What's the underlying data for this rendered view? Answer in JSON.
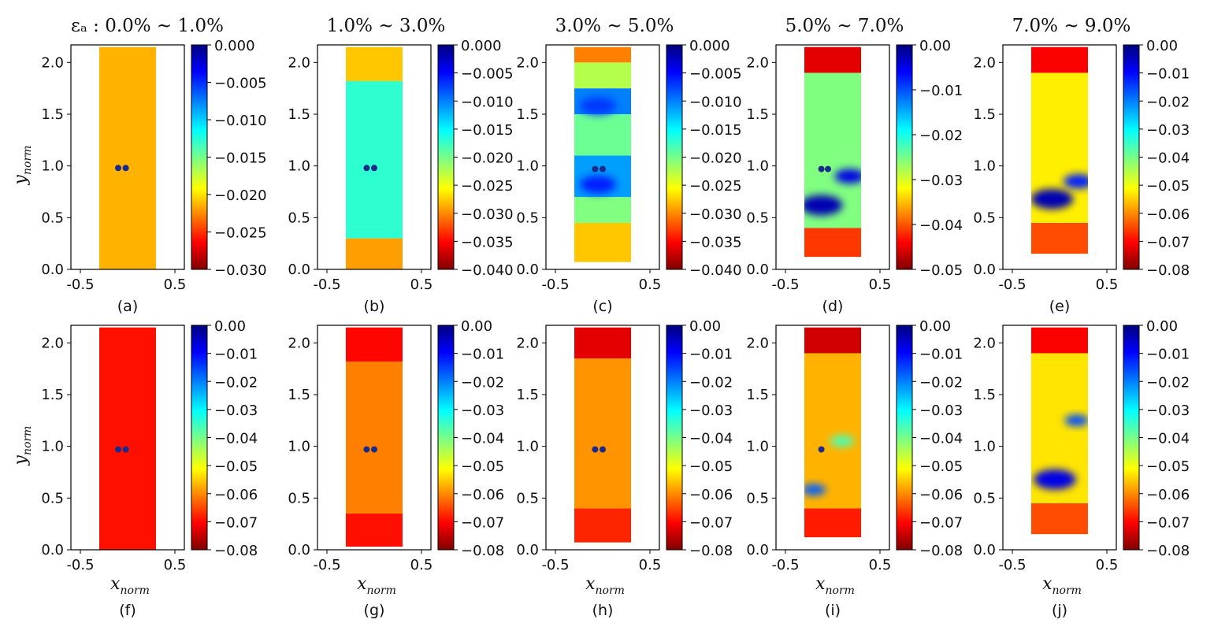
{
  "chart_data": [
    {
      "type": "heatmap",
      "panel": "(a)",
      "title": "εₐ : 0.0% ~ 1.0%",
      "xlabel": "",
      "ylabel": "y_norm",
      "xticks": [
        "-0.5",
        "0.5"
      ],
      "yticks": [
        "0.0",
        "0.5",
        "1.0",
        "1.5",
        "2.0"
      ],
      "xlim": [
        -0.6,
        0.6
      ],
      "ylim": [
        0,
        2.17
      ],
      "colorbar_ticks": [
        "0.000",
        "-0.005",
        "-0.010",
        "-0.015",
        "-0.020",
        "-0.025",
        "-0.030"
      ],
      "colorbar_range": [
        -0.03,
        0.0
      ],
      "specimen": {
        "x": [
          -0.3,
          0.3
        ],
        "y": [
          0,
          2.15
        ]
      },
      "bands": [
        {
          "y": [
            0,
            2.15
          ],
          "v": 0.3
        }
      ],
      "hotspots": [],
      "marks": [
        {
          "x": -0.1,
          "y": 0.98
        },
        {
          "x": -0.02,
          "y": 0.98
        }
      ]
    },
    {
      "type": "heatmap",
      "panel": "(b)",
      "title": "1.0% ~ 3.0%",
      "xlabel": "",
      "ylabel": "",
      "xticks": [
        "-0.5",
        "0.5"
      ],
      "yticks": [
        "0.0",
        "0.5",
        "1.0",
        "1.5",
        "2.0"
      ],
      "xlim": [
        -0.6,
        0.6
      ],
      "ylim": [
        0,
        2.17
      ],
      "colorbar_ticks": [
        "0.000",
        "-0.005",
        "-0.010",
        "-0.015",
        "-0.020",
        "-0.025",
        "-0.030",
        "-0.035",
        "-0.040"
      ],
      "colorbar_range": [
        -0.04,
        0.0
      ],
      "specimen": {
        "x": [
          -0.3,
          0.3
        ],
        "y": [
          0,
          2.15
        ]
      },
      "bands": [
        {
          "y": [
            0,
            0.3
          ],
          "v": 0.28
        },
        {
          "y": [
            0.3,
            1.82
          ],
          "v": 0.58
        },
        {
          "y": [
            1.82,
            2.15
          ],
          "v": 0.32
        }
      ],
      "hotspots": [],
      "marks": [
        {
          "x": -0.08,
          "y": 0.98
        },
        {
          "x": 0.0,
          "y": 0.98
        }
      ]
    },
    {
      "type": "heatmap",
      "panel": "(c)",
      "title": "3.0% ~ 5.0%",
      "xlabel": "",
      "ylabel": "",
      "xticks": [
        "-0.5",
        "0.5"
      ],
      "yticks": [
        "0.0",
        "0.5",
        "1.0",
        "1.5",
        "2.0"
      ],
      "xlim": [
        -0.6,
        0.6
      ],
      "ylim": [
        0,
        2.17
      ],
      "colorbar_ticks": [
        "0.000",
        "-0.005",
        "-0.010",
        "-0.015",
        "-0.020",
        "-0.025",
        "-0.030",
        "-0.035",
        "-0.040"
      ],
      "colorbar_range": [
        -0.04,
        0.0
      ],
      "specimen": {
        "x": [
          -0.3,
          0.3
        ],
        "y": [
          0.07,
          2.15
        ]
      },
      "bands": [
        {
          "y": [
            0.07,
            0.45
          ],
          "v": 0.32
        },
        {
          "y": [
            0.45,
            0.7
          ],
          "v": 0.5
        },
        {
          "y": [
            0.7,
            1.1
          ],
          "v": 0.72
        },
        {
          "y": [
            1.1,
            1.5
          ],
          "v": 0.52
        },
        {
          "y": [
            1.5,
            1.75
          ],
          "v": 0.75
        },
        {
          "y": [
            1.75,
            2.0
          ],
          "v": 0.45
        },
        {
          "y": [
            2.0,
            2.15
          ],
          "v": 0.25
        }
      ],
      "hotspots": [
        {
          "x": -0.05,
          "y": 0.82,
          "r": 0.12,
          "v": 0.85
        },
        {
          "x": -0.05,
          "y": 1.58,
          "r": 0.12,
          "v": 0.82
        }
      ],
      "marks": [
        {
          "x": -0.08,
          "y": 0.97
        },
        {
          "x": 0.0,
          "y": 0.97
        }
      ]
    },
    {
      "type": "heatmap",
      "panel": "(d)",
      "title": "5.0% ~ 7.0%",
      "xlabel": "",
      "ylabel": "",
      "xticks": [
        "-0.5",
        "0.5"
      ],
      "yticks": [
        "0.0",
        "0.5",
        "1.0",
        "1.5",
        "2.0"
      ],
      "xlim": [
        -0.6,
        0.6
      ],
      "ylim": [
        0,
        2.17
      ],
      "colorbar_ticks": [
        "0.00",
        "-0.01",
        "-0.02",
        "-0.03",
        "-0.04",
        "-0.05"
      ],
      "colorbar_range": [
        -0.05,
        0.0
      ],
      "specimen": {
        "x": [
          -0.3,
          0.3
        ],
        "y": [
          0.12,
          2.15
        ]
      },
      "bands": [
        {
          "y": [
            0.12,
            0.4
          ],
          "v": 0.18
        },
        {
          "y": [
            0.4,
            1.9
          ],
          "v": 0.5
        },
        {
          "y": [
            1.9,
            2.15
          ],
          "v": 0.1
        }
      ],
      "hotspots": [
        {
          "x": -0.12,
          "y": 0.62,
          "r": 0.14,
          "v": 0.95
        },
        {
          "x": 0.18,
          "y": 0.9,
          "r": 0.1,
          "v": 0.9
        }
      ],
      "marks": [
        {
          "x": -0.12,
          "y": 0.97
        },
        {
          "x": -0.05,
          "y": 0.97
        }
      ]
    },
    {
      "type": "heatmap",
      "panel": "(e)",
      "title": "7.0% ~ 9.0%",
      "xlabel": "",
      "ylabel": "",
      "xticks": [
        "-0.5",
        "0.5"
      ],
      "yticks": [
        "0.0",
        "0.5",
        "1.0",
        "1.5",
        "2.0"
      ],
      "xlim": [
        -0.6,
        0.6
      ],
      "ylim": [
        0,
        2.17
      ],
      "colorbar_ticks": [
        "0.00",
        "-0.01",
        "-0.02",
        "-0.03",
        "-0.04",
        "-0.05",
        "-0.06",
        "-0.07",
        "-0.08"
      ],
      "colorbar_range": [
        -0.08,
        0.0
      ],
      "specimen": {
        "x": [
          -0.3,
          0.3
        ],
        "y": [
          0.15,
          2.15
        ]
      },
      "bands": [
        {
          "y": [
            0.15,
            0.45
          ],
          "v": 0.2
        },
        {
          "y": [
            0.45,
            1.9
          ],
          "v": 0.36
        },
        {
          "y": [
            1.9,
            2.15
          ],
          "v": 0.12
        }
      ],
      "hotspots": [
        {
          "x": -0.08,
          "y": 0.68,
          "r": 0.14,
          "v": 0.95
        },
        {
          "x": 0.2,
          "y": 0.85,
          "r": 0.1,
          "v": 0.85
        }
      ],
      "marks": []
    },
    {
      "type": "heatmap",
      "panel": "(f)",
      "title": "",
      "xlabel": "x_norm",
      "ylabel": "y_norm",
      "xticks": [
        "-0.5",
        "0.5"
      ],
      "yticks": [
        "0.0",
        "0.5",
        "1.0",
        "1.5",
        "2.0"
      ],
      "xlim": [
        -0.6,
        0.6
      ],
      "ylim": [
        0,
        2.17
      ],
      "colorbar_ticks": [
        "0.00",
        "-0.01",
        "-0.02",
        "-0.03",
        "-0.04",
        "-0.05",
        "-0.06",
        "-0.07",
        "-0.08"
      ],
      "colorbar_range": [
        -0.08,
        0.0
      ],
      "specimen": {
        "x": [
          -0.3,
          0.3
        ],
        "y": [
          0,
          2.15
        ]
      },
      "bands": [
        {
          "y": [
            0,
            2.15
          ],
          "v": 0.14
        }
      ],
      "hotspots": [],
      "marks": [
        {
          "x": -0.1,
          "y": 0.97
        },
        {
          "x": -0.02,
          "y": 0.97
        }
      ]
    },
    {
      "type": "heatmap",
      "panel": "(g)",
      "title": "",
      "xlabel": "x_norm",
      "ylabel": "",
      "xticks": [
        "-0.5",
        "0.5"
      ],
      "yticks": [
        "0.0",
        "0.5",
        "1.0",
        "1.5",
        "2.0"
      ],
      "xlim": [
        -0.6,
        0.6
      ],
      "ylim": [
        0,
        2.17
      ],
      "colorbar_ticks": [
        "0.00",
        "-0.01",
        "-0.02",
        "-0.03",
        "-0.04",
        "-0.05",
        "-0.06",
        "-0.07",
        "-0.08"
      ],
      "colorbar_range": [
        -0.08,
        0.0
      ],
      "specimen": {
        "x": [
          -0.3,
          0.3
        ],
        "y": [
          0.03,
          2.15
        ]
      },
      "bands": [
        {
          "y": [
            0.03,
            0.35
          ],
          "v": 0.14
        },
        {
          "y": [
            0.35,
            1.82
          ],
          "v": 0.25
        },
        {
          "y": [
            1.82,
            2.15
          ],
          "v": 0.13
        }
      ],
      "hotspots": [],
      "marks": [
        {
          "x": -0.08,
          "y": 0.97
        },
        {
          "x": 0.0,
          "y": 0.97
        }
      ]
    },
    {
      "type": "heatmap",
      "panel": "(h)",
      "title": "",
      "xlabel": "x_norm",
      "ylabel": "",
      "xticks": [
        "-0.5",
        "0.5"
      ],
      "yticks": [
        "0.0",
        "0.5",
        "1.0",
        "1.5",
        "2.0"
      ],
      "xlim": [
        -0.6,
        0.6
      ],
      "ylim": [
        0,
        2.17
      ],
      "colorbar_ticks": [
        "0.00",
        "-0.01",
        "-0.02",
        "-0.03",
        "-0.04",
        "-0.05",
        "-0.06",
        "-0.07",
        "-0.08"
      ],
      "colorbar_range": [
        -0.08,
        0.0
      ],
      "specimen": {
        "x": [
          -0.3,
          0.3
        ],
        "y": [
          0.07,
          2.15
        ]
      },
      "bands": [
        {
          "y": [
            0.07,
            0.4
          ],
          "v": 0.16
        },
        {
          "y": [
            0.4,
            1.85
          ],
          "v": 0.27
        },
        {
          "y": [
            1.85,
            2.15
          ],
          "v": 0.1
        }
      ],
      "hotspots": [],
      "marks": [
        {
          "x": -0.08,
          "y": 0.97
        },
        {
          "x": 0.0,
          "y": 0.97
        }
      ]
    },
    {
      "type": "heatmap",
      "panel": "(i)",
      "title": "",
      "xlabel": "x_norm",
      "ylabel": "",
      "xticks": [
        "-0.5",
        "0.5"
      ],
      "yticks": [
        "0.0",
        "0.5",
        "1.0",
        "1.5",
        "2.0"
      ],
      "xlim": [
        -0.6,
        0.6
      ],
      "ylim": [
        0,
        2.17
      ],
      "colorbar_ticks": [
        "0.00",
        "-0.01",
        "-0.02",
        "-0.03",
        "-0.04",
        "-0.05",
        "-0.06",
        "-0.07",
        "-0.08"
      ],
      "colorbar_range": [
        -0.08,
        0.0
      ],
      "specimen": {
        "x": [
          -0.3,
          0.3
        ],
        "y": [
          0.12,
          2.15
        ]
      },
      "bands": [
        {
          "y": [
            0.12,
            0.4
          ],
          "v": 0.15
        },
        {
          "y": [
            0.4,
            1.9
          ],
          "v": 0.3
        },
        {
          "y": [
            1.9,
            2.15
          ],
          "v": 0.08
        }
      ],
      "hotspots": [
        {
          "x": -0.2,
          "y": 0.58,
          "r": 0.08,
          "v": 0.78
        },
        {
          "x": 0.1,
          "y": 1.05,
          "r": 0.08,
          "v": 0.55
        }
      ],
      "marks": [
        {
          "x": -0.12,
          "y": 0.97
        }
      ]
    },
    {
      "type": "heatmap",
      "panel": "(j)",
      "title": "",
      "xlabel": "x_norm",
      "ylabel": "",
      "xticks": [
        "-0.5",
        "0.5"
      ],
      "yticks": [
        "0.0",
        "0.5",
        "1.0",
        "1.5",
        "2.0"
      ],
      "xlim": [
        -0.6,
        0.6
      ],
      "ylim": [
        0,
        2.17
      ],
      "colorbar_ticks": [
        "0.00",
        "-0.01",
        "-0.02",
        "-0.03",
        "-0.04",
        "-0.05",
        "-0.06",
        "-0.07",
        "-0.08"
      ],
      "colorbar_range": [
        -0.08,
        0.0
      ],
      "specimen": {
        "x": [
          -0.3,
          0.3
        ],
        "y": [
          0.15,
          2.15
        ]
      },
      "bands": [
        {
          "y": [
            0.15,
            0.45
          ],
          "v": 0.2
        },
        {
          "y": [
            0.45,
            1.9
          ],
          "v": 0.35
        },
        {
          "y": [
            1.9,
            2.15
          ],
          "v": 0.12
        }
      ],
      "hotspots": [
        {
          "x": -0.05,
          "y": 0.68,
          "r": 0.14,
          "v": 0.9
        },
        {
          "x": 0.18,
          "y": 1.25,
          "r": 0.08,
          "v": 0.8
        }
      ],
      "marks": []
    }
  ]
}
